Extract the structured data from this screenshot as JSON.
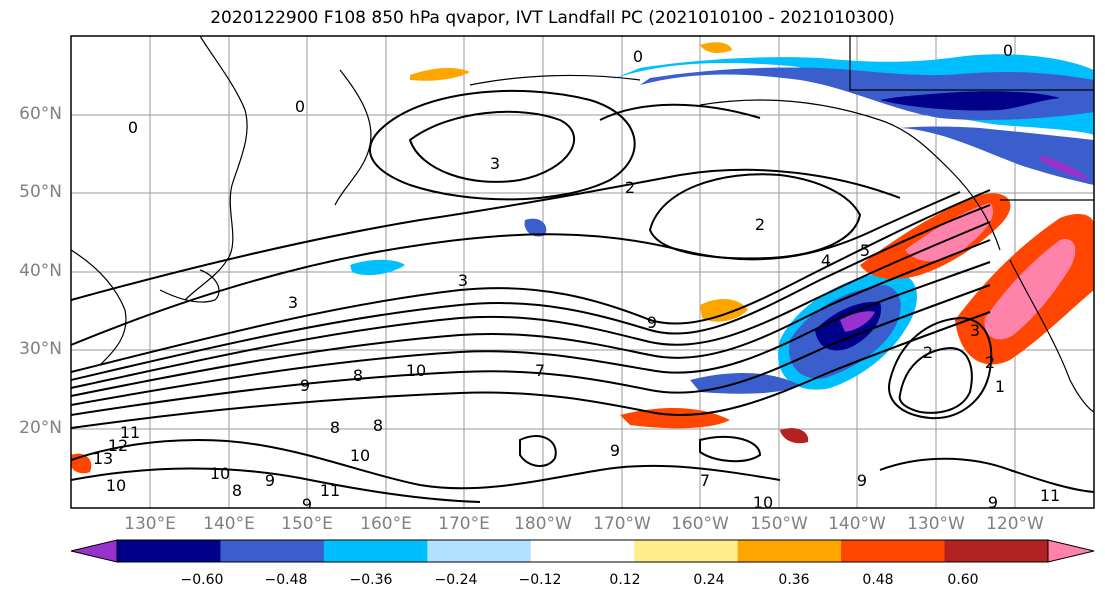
{
  "title": "2020122900 F108 850 hPa qvapor, IVT Landfall PC (2021010100 - 2021010300)",
  "lat_labels": [
    "60°N",
    "50°N",
    "40°N",
    "30°N",
    "20°N"
  ],
  "lon_labels": [
    "130°E",
    "140°E",
    "150°E",
    "160°E",
    "170°E",
    "180°W",
    "170°W",
    "160°W",
    "150°W",
    "140°W",
    "130°W",
    "120°W"
  ],
  "colorbar": {
    "ticks": [
      "−0.60",
      "−0.48",
      "−0.36",
      "−0.24",
      "−0.12",
      "0.12",
      "0.24",
      "0.36",
      "0.48",
      "0.60"
    ],
    "colors": [
      "#9932cc",
      "#00008b",
      "#3a5fcd",
      "#00bfff",
      "#b0e2ff",
      "#ffffff",
      "#ffec8b",
      "#ffa500",
      "#ff4500",
      "#b22222",
      "#ff82ab"
    ]
  },
  "contour_labels": [
    "0",
    "0",
    "0",
    "0",
    "3",
    "2",
    "2",
    "3",
    "4",
    "5",
    "3",
    "3",
    "9",
    "9",
    "8",
    "10",
    "7",
    "9",
    "8",
    "8",
    "10",
    "11",
    "9",
    "7",
    "2",
    "2",
    "1",
    "10",
    "9",
    "9",
    "10",
    "8",
    "9",
    "11",
    "13",
    "12",
    "11",
    "10"
  ]
}
